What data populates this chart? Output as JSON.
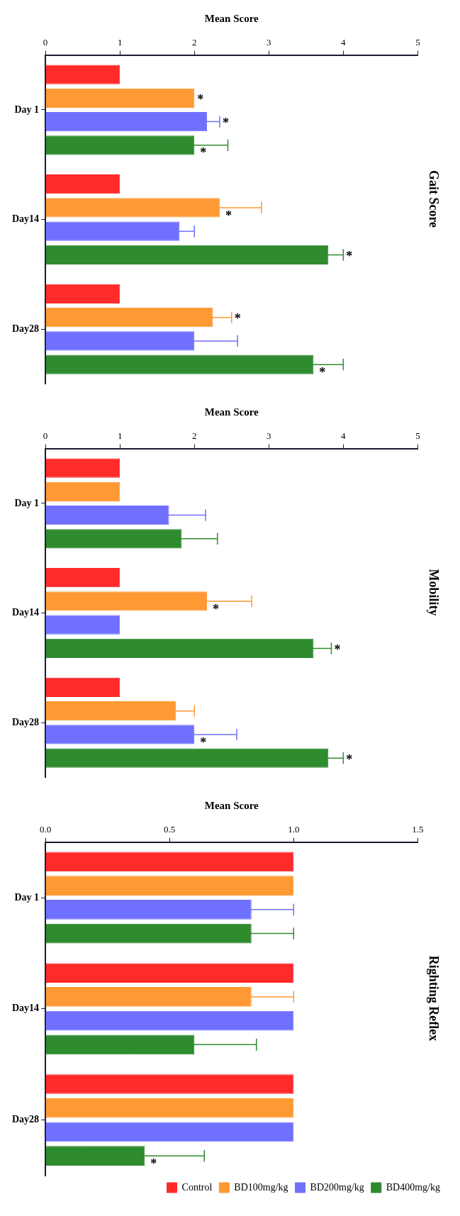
{
  "chart_data": [
    {
      "type": "bar",
      "orientation": "horizontal",
      "title": "Gait Score",
      "xlabel": "Mean Score",
      "categories": [
        "Day 1",
        "Day14",
        "Day28"
      ],
      "xlim": [
        0,
        5
      ],
      "xticks": [
        0,
        1,
        2,
        3,
        4,
        5
      ],
      "grid": false,
      "legend": false,
      "series": [
        {
          "color": "#ff2a2a",
          "values": [
            1.0,
            1.0,
            1.0
          ]
        },
        {
          "color": "#ff9933",
          "values": [
            2.0,
            2.34,
            2.25
          ],
          "errors": [
            null,
            0.56,
            0.25
          ],
          "value_labels": [
            "*",
            "*",
            "*"
          ]
        },
        {
          "color": "#7070ff",
          "values": [
            2.17,
            1.8,
            2.0
          ],
          "errors": [
            0.17,
            0.2,
            0.58
          ],
          "value_labels": [
            "*",
            null,
            null
          ]
        },
        {
          "color": "#2e8b2e",
          "values": [
            2.0,
            3.8,
            3.6
          ],
          "errors": [
            0.45,
            0.2,
            0.4
          ],
          "value_labels": [
            "*",
            "*",
            "*"
          ]
        }
      ]
    },
    {
      "type": "bar",
      "orientation": "horizontal",
      "title": "Mobility",
      "xlabel": "Mean Score",
      "categories": [
        "Day 1",
        "Day14",
        "Day28"
      ],
      "xlim": [
        0,
        5
      ],
      "xticks": [
        0,
        1,
        2,
        3,
        4,
        5
      ],
      "grid": false,
      "legend": false,
      "series": [
        {
          "color": "#ff2a2a",
          "values": [
            1.0,
            1.0,
            1.0
          ]
        },
        {
          "color": "#ff9933",
          "values": [
            1.0,
            2.17,
            1.75
          ],
          "errors": [
            null,
            0.6,
            0.25
          ],
          "value_labels": [
            null,
            "*",
            null
          ]
        },
        {
          "color": "#7070ff",
          "values": [
            1.66,
            1.0,
            2.0
          ],
          "errors": [
            0.49,
            null,
            0.57
          ],
          "value_labels": [
            null,
            null,
            "*"
          ]
        },
        {
          "color": "#2e8b2e",
          "values": [
            1.83,
            3.6,
            3.8
          ],
          "errors": [
            0.48,
            0.24,
            0.2
          ],
          "value_labels": [
            null,
            "*",
            "*"
          ]
        }
      ]
    },
    {
      "type": "bar",
      "orientation": "horizontal",
      "title": "Righting Reflex",
      "xlabel": "Mean Score",
      "categories": [
        "Day 1",
        "Day14",
        "Day28"
      ],
      "xlim": [
        0,
        1.5
      ],
      "xticks": [
        {
          "value": 0,
          "label": "0.0"
        },
        {
          "value": 0.5,
          "label": "0.5"
        },
        {
          "value": 1,
          "label": "1.0"
        },
        {
          "value": 1.5,
          "label": "1.5"
        }
      ],
      "grid": false,
      "legend": "bottom right",
      "series": [
        {
          "name": "Control",
          "color": "#ff2a2a",
          "values": [
            1.0,
            1.0,
            1.0
          ]
        },
        {
          "name": "BD100mg/kg",
          "color": "#ff9933",
          "values": [
            1.0,
            0.83,
            1.0
          ],
          "errors": [
            null,
            0.17,
            null
          ]
        },
        {
          "name": "BD200mg/kg",
          "color": "#7070ff",
          "values": [
            0.83,
            1.0,
            1.0
          ],
          "errors": [
            0.17,
            null,
            null
          ]
        },
        {
          "name": "BD400mg/kg",
          "color": "#2e8b2e",
          "values": [
            0.83,
            0.6,
            0.4
          ],
          "errors": [
            0.17,
            0.25,
            0.24
          ],
          "value_labels": [
            null,
            null,
            "*"
          ]
        }
      ]
    }
  ]
}
